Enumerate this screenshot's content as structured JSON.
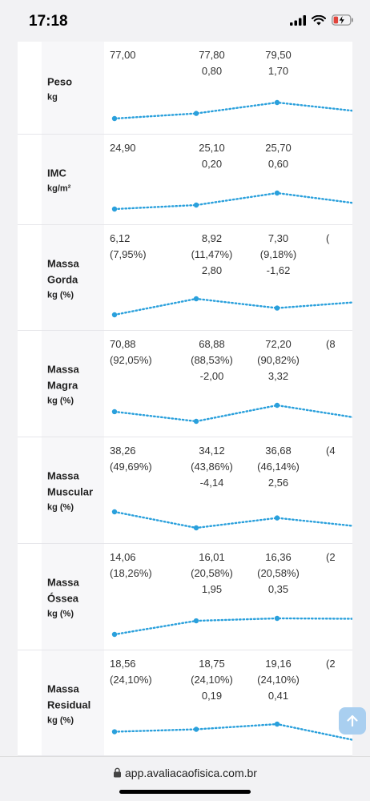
{
  "status": {
    "time": "17:18"
  },
  "url": "app.avaliacaofisica.com.br",
  "accent": "#2aa0dc",
  "rows": [
    {
      "name": "Peso",
      "unit": "kg",
      "values": [
        "77,00",
        "77,80\n0,80",
        "79,50\n1,70"
      ],
      "trend": [
        77.0,
        77.8,
        79.5,
        78.2
      ]
    },
    {
      "name": "IMC",
      "unit": "kg/m²",
      "values": [
        "24,90",
        "25,10\n0,20",
        "25,70\n0,60"
      ],
      "trend": [
        24.9,
        25.1,
        25.7,
        25.2
      ]
    },
    {
      "name": "Massa Gorda",
      "unit": "kg (%)",
      "values": [
        "6,12\n(7,95%)",
        "8,92\n(11,47%)\n2,80",
        "7,30\n(9,18%)\n-1,62",
        "("
      ],
      "trend": [
        6.12,
        8.92,
        7.3,
        8.3
      ]
    },
    {
      "name": "Massa Magra",
      "unit": "kg (%)",
      "values": [
        "70,88\n(92,05%)",
        "68,88\n(88,53%)\n-2,00",
        "72,20\n(90,82%)\n3,32",
        "(8"
      ],
      "trend": [
        70.88,
        68.88,
        72.2,
        69.7
      ]
    },
    {
      "name": "Massa Muscular",
      "unit": "kg (%)",
      "values": [
        "38,26\n(49,69%)",
        "34,12\n(43,86%)\n-4,14",
        "36,68\n(46,14%)\n2,56",
        "(4"
      ],
      "trend": [
        38.26,
        34.12,
        36.68,
        34.6
      ]
    },
    {
      "name": "Massa Óssea",
      "unit": "kg (%)",
      "values": [
        "14,06\n(18,26%)",
        "16,01\n(20,58%)\n1,95",
        "16,36\n(20,58%)\n0,35",
        "(2"
      ],
      "trend": [
        14.06,
        16.01,
        16.36,
        16.3
      ]
    },
    {
      "name": "Massa Residual",
      "unit": "kg (%)",
      "values": [
        "18,56\n(24,10%)",
        "18,75\n(24,10%)\n0,19",
        "19,16\n(24,10%)\n0,41",
        "(2"
      ],
      "trend": [
        18.56,
        18.75,
        19.16,
        17.9
      ]
    }
  ]
}
